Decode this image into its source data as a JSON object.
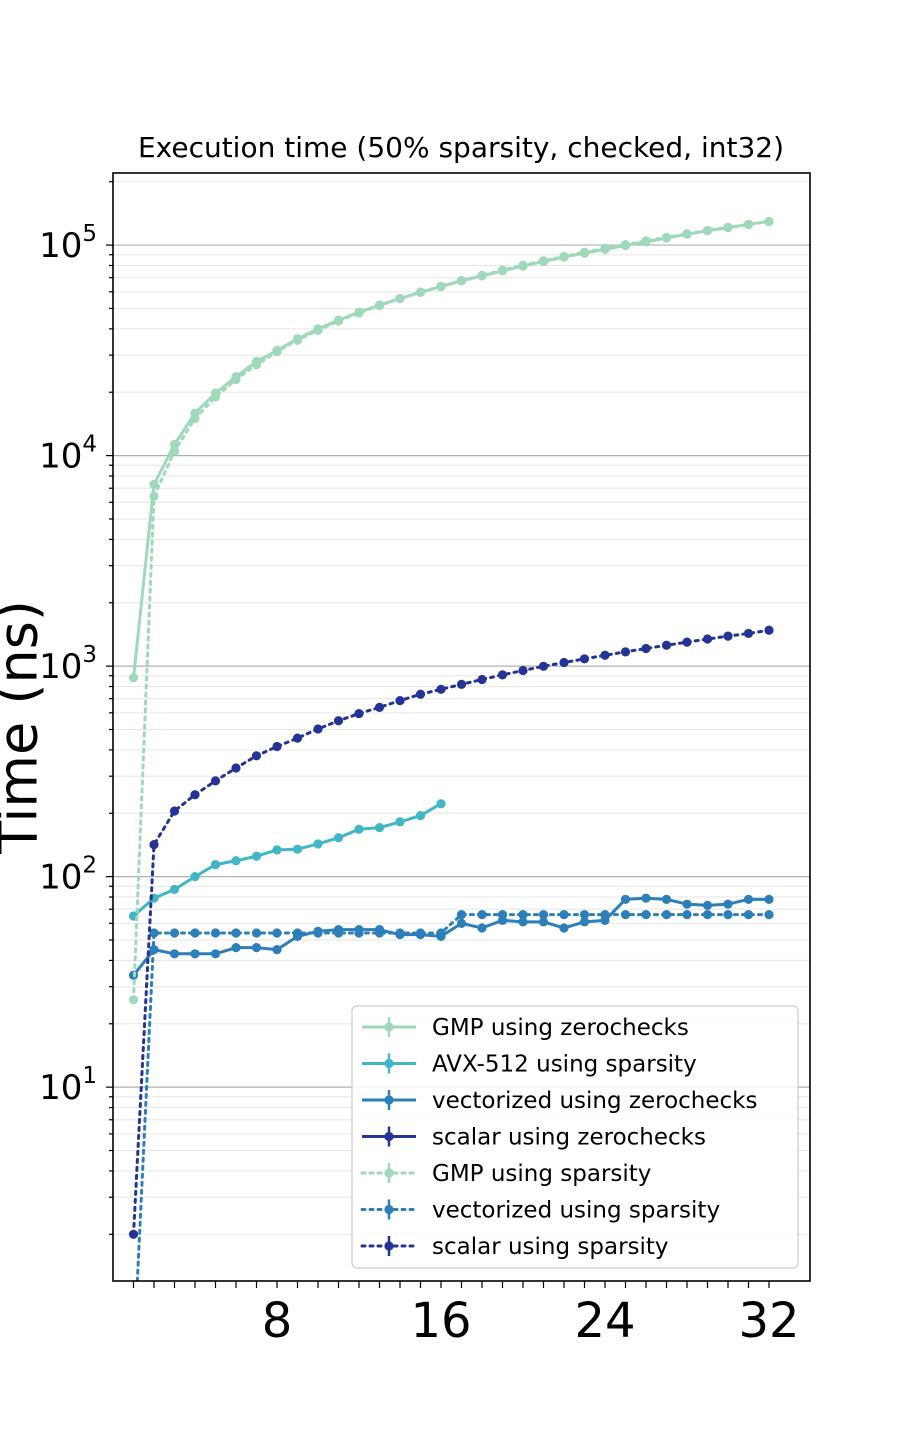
{
  "chart_data": {
    "type": "line",
    "title": "Execution time (50% sparsity, checked, int32)",
    "ylabel": "Time (ns)",
    "xlabel": "",
    "yscale": "log",
    "ylim": [
      1.2,
      220000
    ],
    "xlim": [
      0,
      34
    ],
    "xticks": [
      8,
      16,
      24,
      32
    ],
    "xtick_labels": [
      "8",
      "16",
      "24",
      "32"
    ],
    "yticks": [
      {
        "base": "10",
        "exp": "1",
        "value": 10
      },
      {
        "base": "10",
        "exp": "2",
        "value": 100
      },
      {
        "base": "10",
        "exp": "3",
        "value": 1000
      },
      {
        "base": "10",
        "exp": "4",
        "value": 10000
      },
      {
        "base": "10",
        "exp": "5",
        "value": 100000
      }
    ],
    "grid": true,
    "legend_position": "lower-right",
    "series": [
      {
        "name": "GMP using zerochecks",
        "color": "#9fd8bb",
        "style": "solid",
        "x": [
          1,
          2,
          3,
          4,
          5,
          6,
          7,
          8,
          9,
          10,
          11,
          12,
          13,
          14,
          15,
          16,
          17,
          18,
          19,
          20,
          21,
          22,
          23,
          24,
          25,
          26,
          27,
          28,
          29,
          30,
          31,
          32
        ],
        "y": [
          880,
          7300,
          11300,
          15900,
          19800,
          23700,
          28000,
          31600,
          35900,
          40000,
          44000,
          48000,
          51900,
          55800,
          59600,
          63500,
          67600,
          71400,
          75400,
          79500,
          83500,
          87800,
          91600,
          95500,
          99500,
          103600,
          108000,
          112500,
          117000,
          121000,
          125500,
          129500
        ]
      },
      {
        "name": "AVX-512 using sparsity",
        "color": "#41b6c4",
        "style": "solid",
        "x": [
          1,
          2,
          3,
          4,
          5,
          6,
          7,
          8,
          9,
          10,
          11,
          12,
          13,
          14,
          15,
          16
        ],
        "y": [
          65,
          79,
          87,
          100,
          114,
          119,
          125,
          134,
          135,
          143,
          153,
          168,
          171,
          182,
          195,
          222
        ]
      },
      {
        "name": "vectorized using zerochecks",
        "color": "#2c7fb8",
        "style": "solid",
        "x": [
          1,
          2,
          3,
          4,
          5,
          6,
          7,
          8,
          9,
          10,
          11,
          12,
          13,
          14,
          15,
          16,
          17,
          18,
          19,
          20,
          21,
          22,
          23,
          24,
          25,
          26,
          27,
          28,
          29,
          30,
          31,
          32
        ],
        "y": [
          34,
          45,
          43,
          43,
          43,
          46,
          46,
          45,
          52,
          55,
          56,
          56,
          56,
          53,
          53,
          52,
          60,
          57,
          62,
          61,
          61,
          57,
          61,
          62,
          78,
          79,
          78,
          74,
          73,
          74,
          78,
          78
        ]
      },
      {
        "name": "scalar using zerochecks",
        "color": "#253494",
        "style": "solid",
        "x": [],
        "y": []
      },
      {
        "name": "GMP using sparsity",
        "color": "#9fd8bb",
        "style": "dotted",
        "x": [
          1,
          2,
          3,
          4,
          5,
          6,
          7,
          8,
          9,
          10,
          11,
          12,
          13,
          14,
          15,
          16,
          17,
          18,
          19,
          20,
          21,
          22,
          23,
          24,
          25,
          26,
          27,
          28,
          29,
          30,
          31,
          32
        ],
        "y": [
          26,
          6400,
          10500,
          15000,
          19000,
          23000,
          27000,
          31200,
          35300,
          39400,
          43600,
          47600,
          51600,
          55700,
          59800,
          63700,
          67900,
          71800,
          76000,
          80300,
          84300,
          88300,
          92500,
          96500,
          100600,
          104700,
          108900,
          113200,
          117400,
          121300,
          125200,
          129500
        ]
      },
      {
        "name": "vectorized using sparsity",
        "color": "#2c7fb8",
        "style": "dotted",
        "x": [
          1,
          2,
          3,
          4,
          5,
          6,
          7,
          8,
          9,
          10,
          11,
          12,
          13,
          14,
          15,
          16,
          17,
          18,
          19,
          20,
          21,
          22,
          23,
          24,
          25,
          26,
          27,
          28,
          29,
          30,
          31,
          32
        ],
        "y": [
          0.5,
          54,
          54,
          54,
          54,
          54,
          54,
          54,
          54,
          54,
          54,
          54,
          54,
          54,
          54,
          54,
          66,
          66,
          66,
          66,
          66,
          66,
          66,
          66,
          66,
          66,
          66,
          66,
          66,
          66,
          66,
          66
        ]
      },
      {
        "name": "scalar using sparsity",
        "color": "#253494",
        "style": "dotted",
        "x": [
          1,
          2,
          3,
          4,
          5,
          6,
          7,
          8,
          9,
          10,
          11,
          12,
          13,
          14,
          15,
          16,
          17,
          18,
          19,
          20,
          21,
          22,
          23,
          24,
          25,
          26,
          27,
          28,
          29,
          30,
          31,
          32
        ],
        "y": [
          2,
          142,
          205,
          245,
          285,
          328,
          375,
          415,
          455,
          503,
          550,
          595,
          637,
          686,
          735,
          776,
          819,
          864,
          909,
          953,
          998,
          1040,
          1083,
          1126,
          1169,
          1213,
          1256,
          1300,
          1345,
          1388,
          1430,
          1480
        ]
      }
    ]
  }
}
